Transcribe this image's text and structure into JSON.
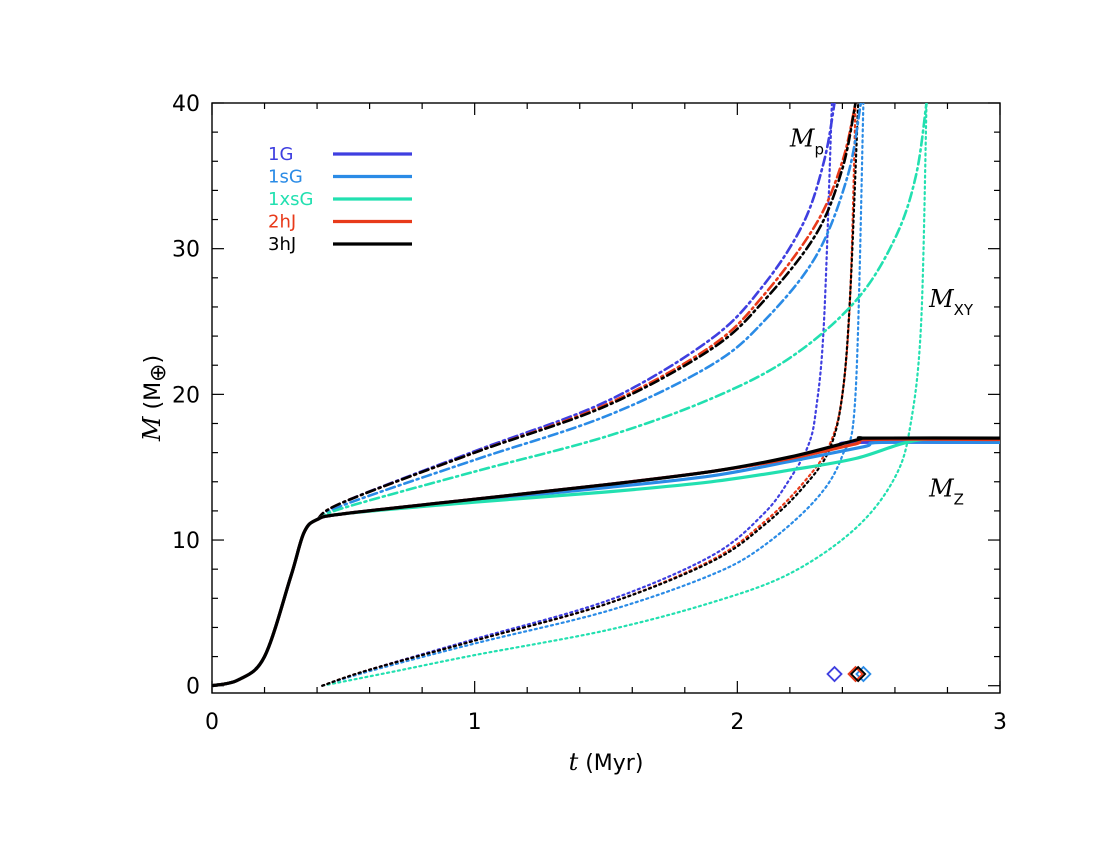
{
  "chart_data": {
    "type": "line",
    "title": "",
    "xlabel": {
      "symbol": "t",
      "unit": "(Myr)"
    },
    "ylabel": {
      "symbol": "M",
      "unit_open": "(M",
      "unit_sub": "⊕",
      "unit_close": ")"
    },
    "xlim": [
      0,
      3
    ],
    "ylim": [
      -0.5,
      40
    ],
    "x_ticks": [
      0,
      1,
      2,
      3
    ],
    "y_ticks": [
      0,
      10,
      20,
      30,
      40
    ],
    "grid": false,
    "legend_position": "top-left",
    "line_styles": {
      "Mp": "dash-dot",
      "MXY": "dotted",
      "MZ": "solid"
    },
    "annotations": [
      {
        "main": "M",
        "sub": "p",
        "x": 2.2,
        "y": 37
      },
      {
        "main": "M",
        "sub": "XY",
        "x": 2.73,
        "y": 26
      },
      {
        "main": "M",
        "sub": "Z",
        "x": 2.73,
        "y": 13
      }
    ],
    "series": [
      {
        "name": "1G",
        "color": "#3f3fe0",
        "MZ": {
          "x": [
            0,
            0.1,
            0.2,
            0.3,
            0.35,
            0.4,
            0.5,
            1.0,
            1.5,
            1.9,
            2.2,
            2.38,
            2.45,
            3.0
          ],
          "y": [
            0,
            0.4,
            2,
            7.5,
            10.5,
            11.4,
            11.8,
            12.8,
            13.8,
            14.7,
            15.6,
            16.4,
            16.7,
            16.7
          ]
        },
        "Mp": {
          "x": [
            0.4,
            0.5,
            1.0,
            1.5,
            1.9,
            2.1,
            2.25,
            2.33,
            2.37
          ],
          "y": [
            11.4,
            12.6,
            16.1,
            19.5,
            23.8,
            27.5,
            31.7,
            36,
            40
          ]
        },
        "MXY": {
          "x": [
            0.42,
            0.6,
            1.0,
            1.5,
            1.9,
            2.1,
            2.2,
            2.27,
            2.3,
            2.33,
            2.36
          ],
          "y": [
            0,
            1.1,
            3.2,
            5.8,
            8.9,
            11.8,
            14.2,
            16.5,
            19,
            25,
            40
          ]
        },
        "marker_x": 2.37
      },
      {
        "name": "1sG",
        "color": "#2a8be6",
        "MZ": {
          "x": [
            0,
            0.1,
            0.2,
            0.3,
            0.35,
            0.4,
            0.5,
            1.0,
            1.5,
            1.9,
            2.2,
            2.48,
            2.55,
            3.0
          ],
          "y": [
            0,
            0.4,
            2,
            7.5,
            10.5,
            11.4,
            11.8,
            12.7,
            13.6,
            14.4,
            15.4,
            16.4,
            16.7,
            16.7
          ]
        },
        "Mp": {
          "x": [
            0.4,
            0.5,
            1.0,
            1.5,
            1.9,
            2.1,
            2.3,
            2.42,
            2.47
          ],
          "y": [
            11.4,
            12.4,
            15.5,
            18.5,
            22,
            25,
            29.5,
            35,
            40
          ]
        },
        "MXY": {
          "x": [
            0.42,
            0.6,
            1.0,
            1.5,
            1.9,
            2.1,
            2.3,
            2.4,
            2.45,
            2.48
          ],
          "y": [
            0,
            1,
            2.9,
            5.1,
            7.6,
            9.6,
            12.8,
            15.8,
            20,
            40
          ]
        },
        "marker_x": 2.48
      },
      {
        "name": "1xsG",
        "color": "#22e0b0",
        "MZ": {
          "x": [
            0,
            0.1,
            0.2,
            0.3,
            0.35,
            0.4,
            0.5,
            1.0,
            1.5,
            1.9,
            2.2,
            2.45,
            2.7,
            3.0
          ],
          "y": [
            0,
            0.4,
            2,
            7.5,
            10.5,
            11.4,
            11.8,
            12.6,
            13.3,
            14,
            14.8,
            15.6,
            16.9,
            16.9
          ]
        },
        "Mp": {
          "x": [
            0.4,
            0.5,
            1.0,
            1.5,
            1.9,
            2.2,
            2.45,
            2.6,
            2.68,
            2.72
          ],
          "y": [
            11.4,
            12.2,
            14.7,
            17.1,
            19.7,
            22.5,
            26.4,
            30.7,
            35,
            40
          ]
        },
        "MXY": {
          "x": [
            0.42,
            0.7,
            1.0,
            1.5,
            1.9,
            2.2,
            2.45,
            2.6,
            2.66,
            2.7,
            2.72
          ],
          "y": [
            0,
            1,
            2.1,
            3.8,
            5.7,
            7.7,
            10.8,
            14.3,
            18,
            25,
            40
          ]
        },
        "marker_x": null
      },
      {
        "name": "2hJ",
        "color": "#e83a1a",
        "MZ": {
          "x": [
            0,
            0.1,
            0.2,
            0.3,
            0.35,
            0.4,
            0.5,
            1.0,
            1.5,
            1.9,
            2.2,
            2.45,
            2.5,
            3.0
          ],
          "y": [
            0,
            0.4,
            2,
            7.5,
            10.5,
            11.4,
            11.8,
            12.8,
            13.8,
            14.7,
            15.6,
            16.6,
            16.9,
            16.9
          ]
        },
        "Mp": {
          "x": [
            0.4,
            0.5,
            1.0,
            1.5,
            1.9,
            2.1,
            2.3,
            2.4,
            2.45
          ],
          "y": [
            11.4,
            12.6,
            16.0,
            19.3,
            23.3,
            26.8,
            31.7,
            36,
            40
          ]
        },
        "MXY": {
          "x": [
            0.42,
            0.6,
            1.0,
            1.5,
            1.9,
            2.1,
            2.25,
            2.35,
            2.4,
            2.43,
            2.45
          ],
          "y": [
            0,
            1.1,
            3.1,
            5.6,
            8.6,
            11.2,
            13.9,
            16.5,
            20,
            27,
            40
          ]
        },
        "marker_x": 2.45
      },
      {
        "name": "3hJ",
        "color": "#000000",
        "MZ": {
          "x": [
            0,
            0.1,
            0.2,
            0.3,
            0.35,
            0.4,
            0.5,
            1.0,
            1.5,
            1.9,
            2.2,
            2.46,
            2.5,
            3.0
          ],
          "y": [
            0,
            0.4,
            2,
            7.5,
            10.5,
            11.4,
            11.8,
            12.8,
            13.8,
            14.7,
            15.7,
            16.9,
            17,
            17
          ]
        },
        "Mp": {
          "x": [
            0.4,
            0.5,
            1.0,
            1.5,
            1.9,
            2.1,
            2.3,
            2.4,
            2.45
          ],
          "y": [
            11.4,
            12.6,
            16.0,
            19.2,
            23.1,
            26.4,
            31,
            35.5,
            40
          ]
        },
        "MXY": {
          "x": [
            0.42,
            0.6,
            1.0,
            1.5,
            1.9,
            2.1,
            2.25,
            2.35,
            2.4,
            2.43,
            2.46
          ],
          "y": [
            0,
            1.1,
            3.1,
            5.6,
            8.5,
            11,
            13.6,
            16.2,
            20,
            27,
            40
          ]
        },
        "marker_x": 2.46
      }
    ]
  }
}
